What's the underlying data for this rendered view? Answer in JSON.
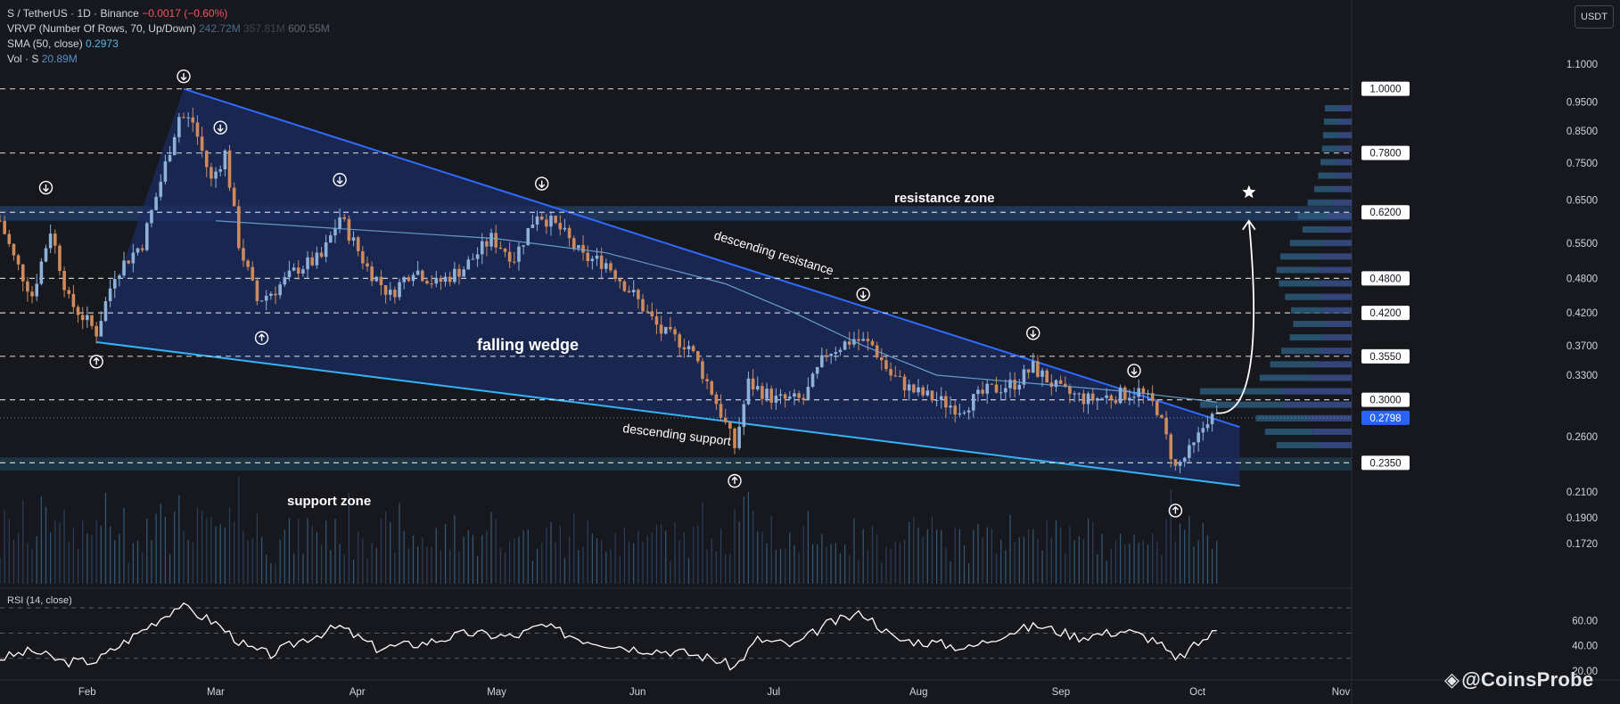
{
  "legend": {
    "symbol": "S / TetherUS · 1D · Binance",
    "change": "−0.0017 (−0.60%)",
    "vrvp_label": "VRVP (Number Of Rows, 70, Up/Down)",
    "vrvp_v1": "242.72M",
    "vrvp_v2": "357.81M",
    "vrvp_v3": "600.55M",
    "sma_label": "SMA (50, close)",
    "sma_value": "0.2973",
    "vol_label": "Vol · S",
    "vol_value": "20.89M"
  },
  "unit_button": "USDT",
  "rsi_label": "RSI (14, close)",
  "watermark": "@CoinsProbe",
  "colors": {
    "background": "#17181d",
    "up": "#8fb1d9",
    "down": "#cf8a5b",
    "wedge_fill": "#1a2a5e",
    "resistance_line": "#2f6bff",
    "support_line": "#36b3f5",
    "sma": "#6fa8d8",
    "zone_fill": "#1f3a4a"
  },
  "chart_data": {
    "type": "candlestick",
    "y_scale": "log",
    "ylim": [
      0.155,
      1.25
    ],
    "x_months": [
      "Feb",
      "Mar",
      "Apr",
      "May",
      "Jun",
      "Jul",
      "Aug",
      "Sep",
      "Oct",
      "Nov"
    ],
    "price_ticks": [
      "1.1000",
      "0.9500",
      "0.8500",
      "0.7500",
      "0.6500",
      "0.5500",
      "0.4800",
      "0.4200",
      "0.3700",
      "0.3300",
      "0.2600",
      "0.2100",
      "0.1900",
      "0.1720"
    ],
    "level_labels": [
      "1.0000",
      "0.7800",
      "0.6200",
      "0.4800",
      "0.4200",
      "0.3550",
      "0.3000",
      "0.2350"
    ],
    "current_price": "0.2798",
    "annotations": {
      "pattern": "falling wedge",
      "resistance_zone": "resistance zone",
      "support_zone": "support zone",
      "descending_resistance": "descending resistance",
      "descending_support": "descending support"
    },
    "resistance_zone_range": [
      0.6,
      0.635
    ],
    "support_zone_range": [
      0.228,
      0.24
    ],
    "wedge": {
      "resistance": [
        {
          "date": "2025-02-22",
          "price": 1.0
        },
        {
          "date": "2025-10-10",
          "price": 0.27
        }
      ],
      "support": [
        {
          "date": "2025-02-03",
          "price": 0.375
        },
        {
          "date": "2025-10-10",
          "price": 0.215
        }
      ]
    },
    "swing_highs": [
      {
        "date": "2025-01-23",
        "price": 0.65
      },
      {
        "date": "2025-02-22",
        "price": 1.0
      },
      {
        "date": "2025-03-02",
        "price": 0.82
      },
      {
        "date": "2025-03-28",
        "price": 0.67
      },
      {
        "date": "2025-05-11",
        "price": 0.66
      },
      {
        "date": "2025-07-20",
        "price": 0.43
      },
      {
        "date": "2025-08-26",
        "price": 0.37
      },
      {
        "date": "2025-09-17",
        "price": 0.32
      }
    ],
    "swing_lows": [
      {
        "date": "2025-02-03",
        "price": 0.365
      },
      {
        "date": "2025-03-11",
        "price": 0.4
      },
      {
        "date": "2025-06-22",
        "price": 0.23
      },
      {
        "date": "2025-09-26",
        "price": 0.205
      }
    ],
    "projection": {
      "from": {
        "date": "2025-10-05",
        "price": 0.285
      },
      "to": {
        "date": "2025-10-12",
        "price": 0.6
      }
    },
    "target_star": {
      "date": "2025-10-12",
      "price": 0.67
    },
    "price_path": [
      {
        "date": "2025-01-13",
        "price": 0.6
      },
      {
        "date": "2025-01-16",
        "price": 0.52
      },
      {
        "date": "2025-01-20",
        "price": 0.45
      },
      {
        "date": "2025-01-24",
        "price": 0.58
      },
      {
        "date": "2025-01-28",
        "price": 0.44
      },
      {
        "date": "2025-02-03",
        "price": 0.39
      },
      {
        "date": "2025-02-07",
        "price": 0.49
      },
      {
        "date": "2025-02-13",
        "price": 0.55
      },
      {
        "date": "2025-02-17",
        "price": 0.7
      },
      {
        "date": "2025-02-21",
        "price": 0.9
      },
      {
        "date": "2025-02-24",
        "price": 0.88
      },
      {
        "date": "2025-02-28",
        "price": 0.7
      },
      {
        "date": "2025-03-03",
        "price": 0.78
      },
      {
        "date": "2025-03-06",
        "price": 0.55
      },
      {
        "date": "2025-03-10",
        "price": 0.44
      },
      {
        "date": "2025-03-14",
        "price": 0.46
      },
      {
        "date": "2025-03-19",
        "price": 0.5
      },
      {
        "date": "2025-03-24",
        "price": 0.52
      },
      {
        "date": "2025-03-28",
        "price": 0.61
      },
      {
        "date": "2025-04-03",
        "price": 0.5
      },
      {
        "date": "2025-04-08",
        "price": 0.45
      },
      {
        "date": "2025-04-13",
        "price": 0.5
      },
      {
        "date": "2025-04-18",
        "price": 0.47
      },
      {
        "date": "2025-04-24",
        "price": 0.5
      },
      {
        "date": "2025-04-30",
        "price": 0.56
      },
      {
        "date": "2025-05-05",
        "price": 0.52
      },
      {
        "date": "2025-05-10",
        "price": 0.62
      },
      {
        "date": "2025-05-15",
        "price": 0.58
      },
      {
        "date": "2025-05-20",
        "price": 0.52
      },
      {
        "date": "2025-05-25",
        "price": 0.51
      },
      {
        "date": "2025-05-31",
        "price": 0.45
      },
      {
        "date": "2025-06-06",
        "price": 0.39
      },
      {
        "date": "2025-06-12",
        "price": 0.37
      },
      {
        "date": "2025-06-17",
        "price": 0.31
      },
      {
        "date": "2025-06-22",
        "price": 0.25
      },
      {
        "date": "2025-06-25",
        "price": 0.32
      },
      {
        "date": "2025-07-01",
        "price": 0.3
      },
      {
        "date": "2025-07-07",
        "price": 0.3
      },
      {
        "date": "2025-07-12",
        "price": 0.36
      },
      {
        "date": "2025-07-18",
        "price": 0.38
      },
      {
        "date": "2025-07-22",
        "price": 0.37
      },
      {
        "date": "2025-07-26",
        "price": 0.33
      },
      {
        "date": "2025-07-31",
        "price": 0.31
      },
      {
        "date": "2025-08-05",
        "price": 0.3
      },
      {
        "date": "2025-08-10",
        "price": 0.29
      },
      {
        "date": "2025-08-16",
        "price": 0.31
      },
      {
        "date": "2025-08-22",
        "price": 0.32
      },
      {
        "date": "2025-08-26",
        "price": 0.34
      },
      {
        "date": "2025-09-01",
        "price": 0.31
      },
      {
        "date": "2025-09-07",
        "price": 0.3
      },
      {
        "date": "2025-09-13",
        "price": 0.305
      },
      {
        "date": "2025-09-18",
        "price": 0.31
      },
      {
        "date": "2025-09-22",
        "price": 0.29
      },
      {
        "date": "2025-09-26",
        "price": 0.23
      },
      {
        "date": "2025-09-30",
        "price": 0.25
      },
      {
        "date": "2025-10-03",
        "price": 0.28
      },
      {
        "date": "2025-10-05",
        "price": 0.28
      }
    ],
    "sma_path": [
      {
        "date": "2025-03-01",
        "price": 0.6
      },
      {
        "date": "2025-03-31",
        "price": 0.58
      },
      {
        "date": "2025-05-01",
        "price": 0.56
      },
      {
        "date": "2025-05-25",
        "price": 0.53
      },
      {
        "date": "2025-06-20",
        "price": 0.47
      },
      {
        "date": "2025-07-05",
        "price": 0.42
      },
      {
        "date": "2025-07-20",
        "price": 0.37
      },
      {
        "date": "2025-08-05",
        "price": 0.33
      },
      {
        "date": "2025-08-25",
        "price": 0.32
      },
      {
        "date": "2025-09-15",
        "price": 0.31
      },
      {
        "date": "2025-10-05",
        "price": 0.2973
      }
    ],
    "rsi": {
      "ticks": [
        "60.00",
        "40.00",
        "20.00"
      ],
      "ylim": [
        15,
        80
      ],
      "levels": [
        70,
        50,
        30
      ],
      "points": [
        {
          "date": "2025-01-13",
          "value": 30
        },
        {
          "date": "2025-01-20",
          "value": 36
        },
        {
          "date": "2025-01-27",
          "value": 27
        },
        {
          "date": "2025-02-03",
          "value": 28
        },
        {
          "date": "2025-02-10",
          "value": 45
        },
        {
          "date": "2025-02-17",
          "value": 62
        },
        {
          "date": "2025-02-21",
          "value": 72
        },
        {
          "date": "2025-03-01",
          "value": 58
        },
        {
          "date": "2025-03-08",
          "value": 38
        },
        {
          "date": "2025-03-13",
          "value": 33
        },
        {
          "date": "2025-03-20",
          "value": 45
        },
        {
          "date": "2025-03-28",
          "value": 55
        },
        {
          "date": "2025-04-05",
          "value": 38
        },
        {
          "date": "2025-04-15",
          "value": 42
        },
        {
          "date": "2025-04-25",
          "value": 50
        },
        {
          "date": "2025-05-05",
          "value": 47
        },
        {
          "date": "2025-05-11",
          "value": 56
        },
        {
          "date": "2025-05-20",
          "value": 45
        },
        {
          "date": "2025-05-31",
          "value": 38
        },
        {
          "date": "2025-06-10",
          "value": 35
        },
        {
          "date": "2025-06-17",
          "value": 30
        },
        {
          "date": "2025-06-22",
          "value": 23
        },
        {
          "date": "2025-06-27",
          "value": 45
        },
        {
          "date": "2025-07-05",
          "value": 40
        },
        {
          "date": "2025-07-12",
          "value": 57
        },
        {
          "date": "2025-07-20",
          "value": 66
        },
        {
          "date": "2025-07-27",
          "value": 45
        },
        {
          "date": "2025-08-05",
          "value": 42
        },
        {
          "date": "2025-08-12",
          "value": 38
        },
        {
          "date": "2025-08-20",
          "value": 50
        },
        {
          "date": "2025-08-27",
          "value": 56
        },
        {
          "date": "2025-09-05",
          "value": 47
        },
        {
          "date": "2025-09-15",
          "value": 52
        },
        {
          "date": "2025-09-22",
          "value": 44
        },
        {
          "date": "2025-09-26",
          "value": 28
        },
        {
          "date": "2025-10-01",
          "value": 42
        },
        {
          "date": "2025-10-05",
          "value": 52
        }
      ]
    }
  }
}
